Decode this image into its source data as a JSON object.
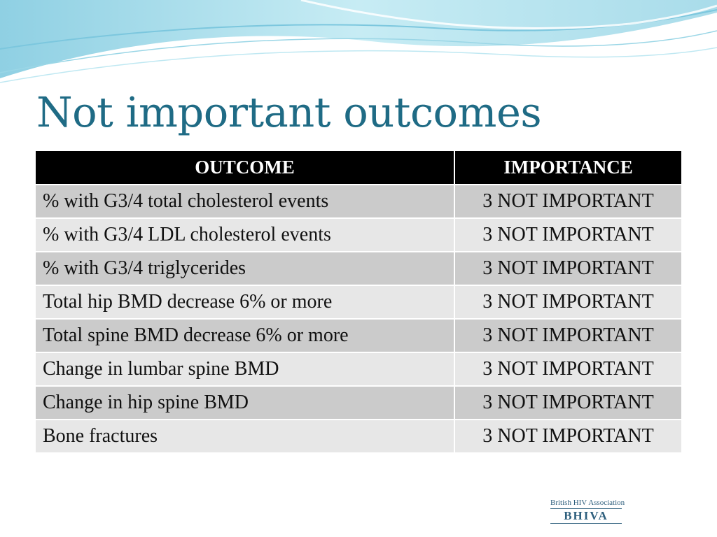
{
  "slide": {
    "title": "Not important outcomes"
  },
  "table": {
    "headers": [
      "OUTCOME",
      "IMPORTANCE"
    ],
    "rows": [
      [
        "% with G3/4 total cholesterol events",
        "3 NOT IMPORTANT"
      ],
      [
        "% with G3/4 LDL cholesterol events",
        "3 NOT IMPORTANT"
      ],
      [
        "% with G3/4 triglycerides",
        "3 NOT IMPORTANT"
      ],
      [
        "Total hip BMD decrease 6% or more",
        "3 NOT IMPORTANT"
      ],
      [
        "Total spine BMD decrease 6% or more",
        "3 NOT IMPORTANT"
      ],
      [
        "Change in lumbar spine BMD",
        "3 NOT IMPORTANT"
      ],
      [
        "Change in hip spine BMD",
        "3 NOT IMPORTANT"
      ],
      [
        "Bone fractures",
        "3 NOT IMPORTANT"
      ]
    ]
  },
  "logo": {
    "top_text": "British HIV Association",
    "main_text": "BHIVA"
  },
  "colors": {
    "title": "#1f6b85",
    "header_bg": "#000000",
    "row_odd": "#cbcbcb",
    "row_even": "#e7e7e7",
    "swoosh_light": "#bfe8f2",
    "swoosh_mid": "#7cc7de"
  }
}
